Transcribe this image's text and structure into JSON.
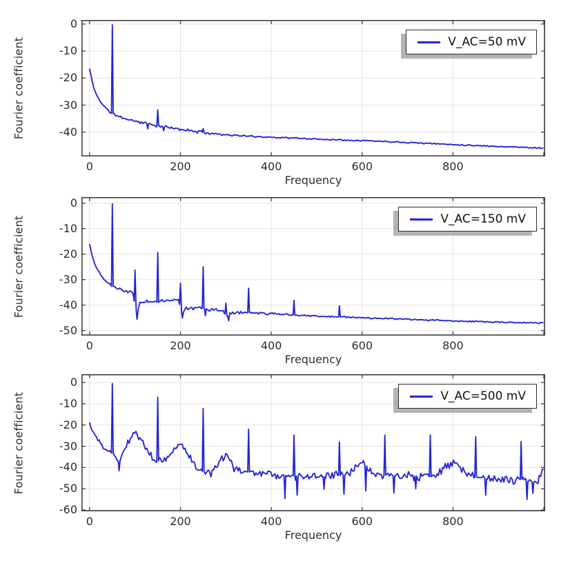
{
  "figure": {
    "background": "#ffffff"
  },
  "colors": {
    "series_line": "#2424d8",
    "grid": "#e3e3e3",
    "axis_frame": "#3f3f3f",
    "text": "#2d2d2d",
    "legend_bg": "#ffffff",
    "legend_border": "#2b2b2b",
    "legend_shadow": "#b3b3b3"
  },
  "chart_data": [
    {
      "type": "line",
      "legend": "V_AC=50 mV",
      "xlabel": "Frequency",
      "ylabel": "Fourier coefficient",
      "xlim": [
        -18,
        1003
      ],
      "ylim": [
        -49,
        1.5
      ],
      "xtick_labels": [
        0,
        200,
        400,
        600,
        800
      ],
      "xgrid": [
        0,
        200,
        400,
        600,
        800,
        1000
      ],
      "yticks": [
        0,
        -10,
        -20,
        -30,
        -40
      ],
      "grid": true,
      "legend_position": "top-right",
      "seed": 11,
      "sample_step": 3,
      "baseline": [
        [
          0,
          -16.5
        ],
        [
          3,
          -19
        ],
        [
          8,
          -23
        ],
        [
          15,
          -26.2
        ],
        [
          25,
          -29
        ],
        [
          35,
          -31
        ],
        [
          45,
          -32.6
        ],
        [
          60,
          -34
        ],
        [
          80,
          -35.1
        ],
        [
          100,
          -35.9
        ],
        [
          120,
          -36.6
        ],
        [
          140,
          -37.3
        ],
        [
          160,
          -38
        ],
        [
          180,
          -38.5
        ],
        [
          200,
          -39
        ],
        [
          250,
          -40.1
        ],
        [
          300,
          -41
        ],
        [
          350,
          -41.5
        ],
        [
          400,
          -41.9
        ],
        [
          450,
          -42.2
        ],
        [
          500,
          -42.6
        ],
        [
          600,
          -43.1
        ],
        [
          700,
          -43.8
        ],
        [
          800,
          -44.6
        ],
        [
          900,
          -45.3
        ],
        [
          1000,
          -45.9
        ]
      ],
      "spikes": [
        [
          50,
          -0.25
        ],
        [
          150,
          -31.8
        ],
        [
          250,
          -38.7
        ]
      ],
      "dips": [
        [
          128,
          -38.8
        ],
        [
          163,
          -39.5
        ]
      ],
      "noise_amp": [
        [
          0,
          0.25
        ],
        [
          80,
          0.55
        ],
        [
          120,
          0.75
        ],
        [
          260,
          0.6
        ],
        [
          320,
          0.35
        ],
        [
          1000,
          0.25
        ]
      ]
    },
    {
      "type": "line",
      "legend": "V_AC=150 mV",
      "xlabel": "Frequency",
      "ylabel": "Fourier coefficient",
      "xlim": [
        -18,
        1003
      ],
      "ylim": [
        -52,
        2.4
      ],
      "xtick_labels": [
        0,
        200,
        400,
        600,
        800
      ],
      "xgrid": [
        0,
        200,
        400,
        600,
        800,
        1000
      ],
      "yticks": [
        0,
        -10,
        -20,
        -30,
        -40,
        -50
      ],
      "grid": true,
      "legend_position": "top-right",
      "seed": 23,
      "sample_step": 3,
      "baseline": [
        [
          0,
          -15.8
        ],
        [
          3,
          -18.5
        ],
        [
          8,
          -22.3
        ],
        [
          15,
          -25.3
        ],
        [
          25,
          -28.3
        ],
        [
          32,
          -30.1
        ],
        [
          40,
          -31.2
        ],
        [
          48,
          -32.4
        ],
        [
          55,
          -33.2
        ],
        [
          70,
          -34.1
        ],
        [
          85,
          -35
        ],
        [
          93,
          -34.3
        ],
        [
          98,
          -35.5
        ],
        [
          103,
          -43
        ],
        [
          107,
          -41
        ],
        [
          112,
          -39
        ],
        [
          125,
          -38.7
        ],
        [
          140,
          -38.4
        ],
        [
          150,
          -38.9
        ],
        [
          165,
          -38.5
        ],
        [
          180,
          -38.3
        ],
        [
          193,
          -37.2
        ],
        [
          199,
          -38.5
        ],
        [
          203,
          -43.5
        ],
        [
          208,
          -41.5
        ],
        [
          220,
          -41
        ],
        [
          245,
          -41
        ],
        [
          260,
          -41.7
        ],
        [
          285,
          -42.2
        ],
        [
          298,
          -42.8
        ],
        [
          304,
          -44.8
        ],
        [
          312,
          -42.9
        ],
        [
          340,
          -42.9
        ],
        [
          370,
          -43.1
        ],
        [
          420,
          -43.6
        ],
        [
          500,
          -44.3
        ],
        [
          600,
          -45
        ],
        [
          700,
          -45.6
        ],
        [
          800,
          -46.2
        ],
        [
          900,
          -46.7
        ],
        [
          1000,
          -47.1
        ]
      ],
      "spikes": [
        [
          50,
          -0.25
        ],
        [
          100,
          -26.3
        ],
        [
          150,
          -19.4
        ],
        [
          200,
          -31.4
        ],
        [
          250,
          -25
        ],
        [
          300,
          -39.2
        ],
        [
          350,
          -33.4
        ],
        [
          450,
          -38.2
        ],
        [
          550,
          -40.3
        ]
      ],
      "dips": [
        [
          104.5,
          -45.6
        ],
        [
          204.5,
          -45.1
        ],
        [
          255,
          -44.2
        ],
        [
          306,
          -46.1
        ]
      ],
      "noise_amp": [
        [
          0,
          0.3
        ],
        [
          80,
          0.7
        ],
        [
          110,
          1.1
        ],
        [
          210,
          1
        ],
        [
          350,
          0.8
        ],
        [
          420,
          0.5
        ],
        [
          600,
          0.35
        ],
        [
          1000,
          0.3
        ]
      ]
    },
    {
      "type": "line",
      "legend": "V_AC=500 mV",
      "xlabel": "Frequency",
      "ylabel": "Fourier coefficient",
      "xlim": [
        -18,
        1003
      ],
      "ylim": [
        -60.6,
        3.9
      ],
      "xtick_labels": [
        0,
        200,
        400,
        600,
        800
      ],
      "xgrid": [
        0,
        200,
        400,
        600,
        800,
        1000
      ],
      "yticks": [
        0,
        -10,
        -20,
        -30,
        -40,
        -50,
        -60
      ],
      "grid": true,
      "legend_position": "top-right",
      "seed": 37,
      "sample_step": 3,
      "baseline": [
        [
          0,
          -19.5
        ],
        [
          5,
          -22
        ],
        [
          12,
          -25
        ],
        [
          20,
          -28
        ],
        [
          30,
          -30.5
        ],
        [
          40,
          -32.3
        ],
        [
          48,
          -32.8
        ],
        [
          56,
          -34.5
        ],
        [
          63,
          -38
        ],
        [
          70,
          -34.5
        ],
        [
          80,
          -30
        ],
        [
          90,
          -26.5
        ],
        [
          100,
          -23.2
        ],
        [
          110,
          -26
        ],
        [
          120,
          -29.5
        ],
        [
          130,
          -32.5
        ],
        [
          140,
          -35.5
        ],
        [
          148,
          -37
        ],
        [
          158,
          -36.3
        ],
        [
          170,
          -35.8
        ],
        [
          180,
          -33.5
        ],
        [
          190,
          -29.5
        ],
        [
          200,
          -27.8
        ],
        [
          210,
          -31
        ],
        [
          220,
          -35
        ],
        [
          230,
          -39
        ],
        [
          240,
          -41.5
        ],
        [
          255,
          -42
        ],
        [
          270,
          -42.5
        ],
        [
          283,
          -38.5
        ],
        [
          295,
          -35
        ],
        [
          302,
          -34.8
        ],
        [
          312,
          -37.5
        ],
        [
          322,
          -41
        ],
        [
          335,
          -42.5
        ],
        [
          352,
          -42
        ],
        [
          368,
          -42.6
        ],
        [
          385,
          -41.9
        ],
        [
          400,
          -42.6
        ],
        [
          418,
          -44
        ],
        [
          440,
          -43.6
        ],
        [
          465,
          -44.2
        ],
        [
          490,
          -44
        ],
        [
          515,
          -44.4
        ],
        [
          540,
          -43.6
        ],
        [
          565,
          -43.8
        ],
        [
          580,
          -41.6
        ],
        [
          592,
          -39.3
        ],
        [
          602,
          -38
        ],
        [
          612,
          -40.2
        ],
        [
          625,
          -43
        ],
        [
          650,
          -43.6
        ],
        [
          680,
          -44.1
        ],
        [
          710,
          -44.2
        ],
        [
          735,
          -43.8
        ],
        [
          760,
          -44.6
        ],
        [
          778,
          -41
        ],
        [
          790,
          -38.8
        ],
        [
          802,
          -37.8
        ],
        [
          812,
          -39.8
        ],
        [
          825,
          -42.2
        ],
        [
          845,
          -44.2
        ],
        [
          865,
          -45.2
        ],
        [
          885,
          -45.6
        ],
        [
          905,
          -45.2
        ],
        [
          925,
          -46
        ],
        [
          945,
          -45.2
        ],
        [
          965,
          -46.6
        ],
        [
          982,
          -46.9
        ],
        [
          992,
          -43.8
        ],
        [
          1000,
          -40.3
        ]
      ],
      "spikes": [
        [
          50,
          -0.5
        ],
        [
          150,
          -7
        ],
        [
          250,
          -12.2
        ],
        [
          350,
          -22
        ],
        [
          450,
          -24.8
        ],
        [
          550,
          -28
        ],
        [
          650,
          -24.8
        ],
        [
          750,
          -24.8
        ],
        [
          850,
          -25.5
        ],
        [
          950,
          -27.8
        ]
      ],
      "dips": [
        [
          65,
          -41.5
        ],
        [
          430,
          -54.6
        ],
        [
          457,
          -53
        ],
        [
          516,
          -50.2
        ],
        [
          560,
          -52.5
        ],
        [
          608,
          -51
        ],
        [
          670,
          -52
        ],
        [
          718,
          -50
        ],
        [
          872,
          -53
        ],
        [
          963,
          -55
        ],
        [
          976,
          -52.2
        ]
      ],
      "noise_amp": [
        [
          0,
          1.5
        ],
        [
          200,
          1.9
        ],
        [
          300,
          2.4
        ],
        [
          1000,
          2.5
        ]
      ]
    }
  ]
}
